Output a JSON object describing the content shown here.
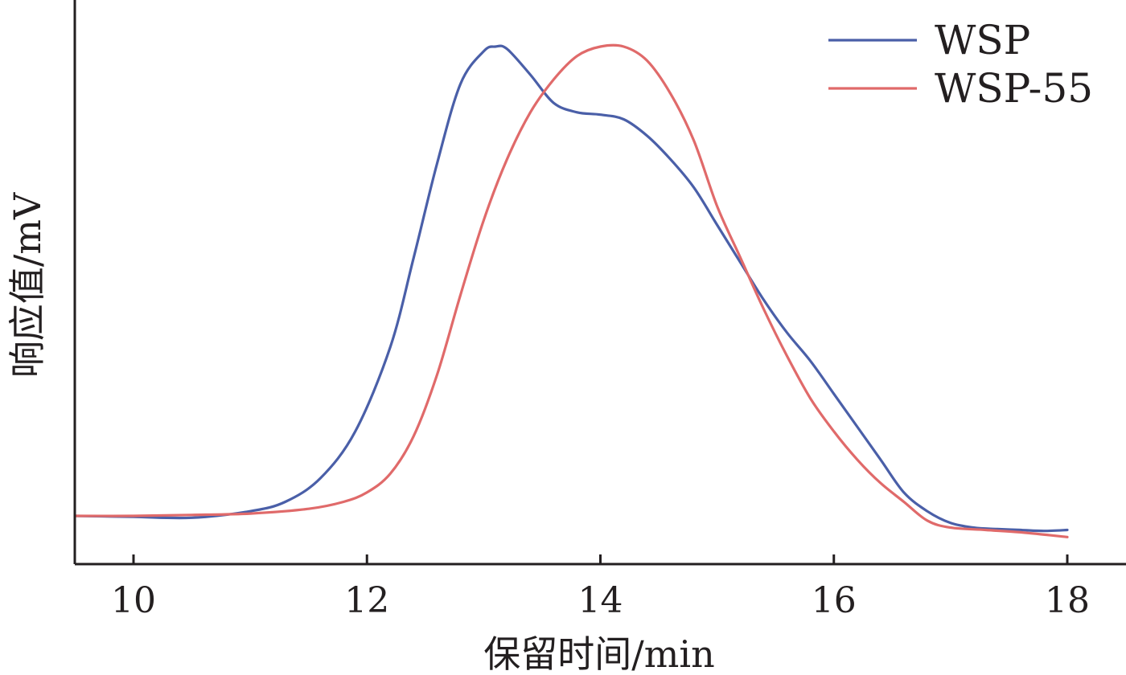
{
  "chart_data": {
    "type": "line",
    "xlabel": "保留时间/min",
    "ylabel": "响应值/mV",
    "xlim": [
      9.5,
      19
    ],
    "ylim": [
      -8,
      100
    ],
    "x_ticks": [
      10,
      12,
      14,
      16,
      18
    ],
    "y_ticks_shown": false,
    "grid": false,
    "legend_position": "top-right",
    "series": [
      {
        "name": "WSP",
        "color": "#4a5fa8",
        "x": [
          9.5,
          10.0,
          10.5,
          11.0,
          11.3,
          11.6,
          11.9,
          12.2,
          12.4,
          12.6,
          12.8,
          13.0,
          13.1,
          13.2,
          13.4,
          13.6,
          13.8,
          14.0,
          14.2,
          14.4,
          14.6,
          14.8,
          15.0,
          15.2,
          15.4,
          15.6,
          15.8,
          16.0,
          16.2,
          16.4,
          16.6,
          16.8,
          17.0,
          17.2,
          17.4,
          17.6,
          17.8,
          18.0
        ],
        "y": [
          0,
          -0.2,
          -0.4,
          1,
          3,
          8,
          18,
          36,
          55,
          75,
          92,
          99,
          100,
          99.5,
          94,
          88,
          86,
          85.5,
          84.5,
          81,
          76,
          70,
          62,
          54,
          46,
          39,
          33,
          26,
          19,
          12,
          5,
          1,
          -1.5,
          -2.5,
          -2.8,
          -3,
          -3.2,
          -3
        ]
      },
      {
        "name": "WSP-55",
        "color": "#e06a6a",
        "x": [
          9.5,
          10.0,
          10.5,
          11.0,
          11.5,
          11.8,
          12.0,
          12.2,
          12.4,
          12.6,
          12.8,
          13.0,
          13.2,
          13.4,
          13.6,
          13.8,
          14.0,
          14.2,
          14.4,
          14.6,
          14.8,
          15.0,
          15.2,
          15.4,
          15.6,
          15.8,
          16.0,
          16.2,
          16.4,
          16.6,
          16.8,
          17.0,
          17.3,
          17.6,
          18.0
        ],
        "y": [
          0,
          0,
          0.2,
          0.5,
          1.5,
          3,
          5,
          9,
          17,
          30,
          47,
          63,
          76,
          86,
          93,
          98,
          100,
          100,
          97,
          90,
          80,
          66,
          55,
          44,
          34,
          25,
          18,
          12,
          7,
          3,
          -1,
          -2.5,
          -3,
          -3.5,
          -4.5
        ]
      }
    ]
  }
}
